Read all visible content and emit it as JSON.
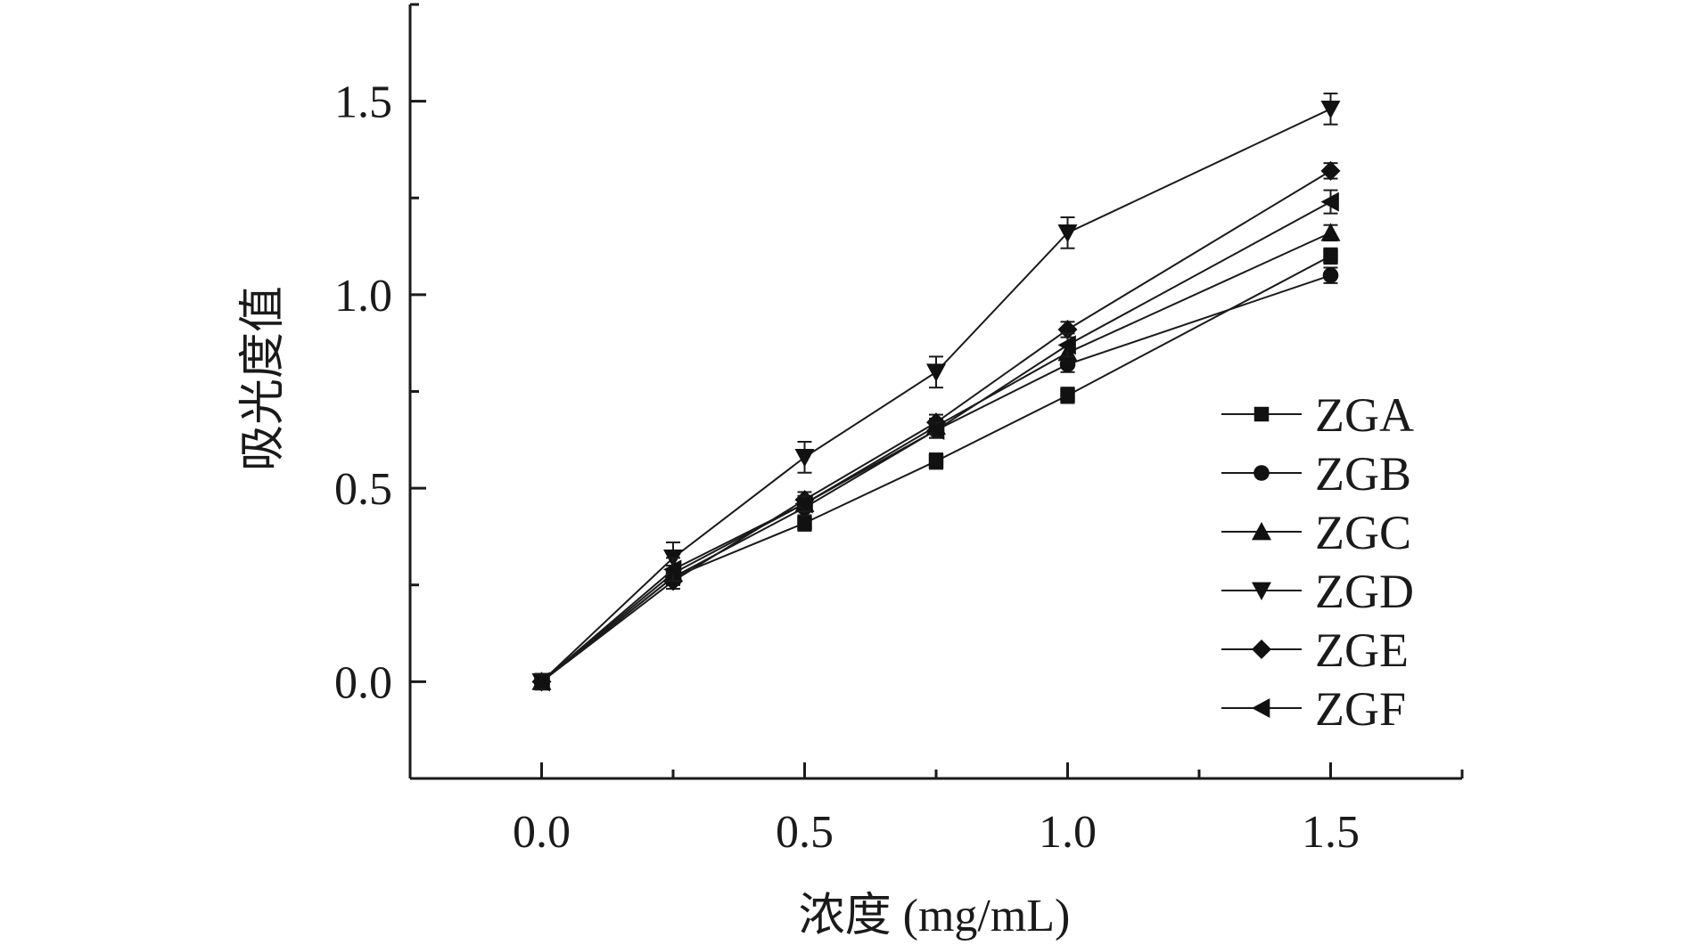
{
  "chart_data": {
    "type": "line",
    "title": "",
    "xlabel": "浓度 (mg/mL)",
    "ylabel": "吸光度值",
    "xlim": [
      -0.25,
      1.75
    ],
    "ylim": [
      -0.25,
      1.75
    ],
    "x_ticks": [
      "0.0",
      "0.5",
      "1.0",
      "1.5"
    ],
    "y_ticks": [
      "0.0",
      "0.5",
      "1.0",
      "1.5"
    ],
    "x": [
      0.0,
      0.25,
      0.5,
      0.75,
      1.0,
      1.5
    ],
    "grid": false,
    "legend_position": "right",
    "series": [
      {
        "name": "ZGA",
        "marker": "square",
        "values": [
          0.0,
          0.27,
          0.41,
          0.57,
          0.74,
          1.1
        ],
        "errors": [
          0.02,
          0.02,
          0.02,
          0.02,
          0.02,
          0.02
        ]
      },
      {
        "name": "ZGB",
        "marker": "circle",
        "values": [
          0.0,
          0.27,
          0.45,
          0.65,
          0.82,
          1.05
        ],
        "errors": [
          0.02,
          0.02,
          0.02,
          0.02,
          0.02,
          0.02
        ]
      },
      {
        "name": "ZGC",
        "marker": "triangle-up",
        "values": [
          0.0,
          0.28,
          0.46,
          0.66,
          0.85,
          1.16
        ],
        "errors": [
          0.02,
          0.02,
          0.02,
          0.02,
          0.02,
          0.02
        ]
      },
      {
        "name": "ZGD",
        "marker": "triangle-down",
        "values": [
          0.0,
          0.32,
          0.58,
          0.8,
          1.16,
          1.48
        ],
        "errors": [
          0.02,
          0.04,
          0.04,
          0.04,
          0.04,
          0.04
        ]
      },
      {
        "name": "ZGE",
        "marker": "diamond",
        "values": [
          0.0,
          0.26,
          0.47,
          0.67,
          0.91,
          1.32
        ],
        "errors": [
          0.02,
          0.02,
          0.02,
          0.02,
          0.02,
          0.02
        ]
      },
      {
        "name": "ZGF",
        "marker": "triangle-left",
        "values": [
          0.0,
          0.29,
          0.46,
          0.65,
          0.87,
          1.24
        ],
        "errors": [
          0.02,
          0.03,
          0.02,
          0.02,
          0.03,
          0.03
        ]
      }
    ]
  }
}
